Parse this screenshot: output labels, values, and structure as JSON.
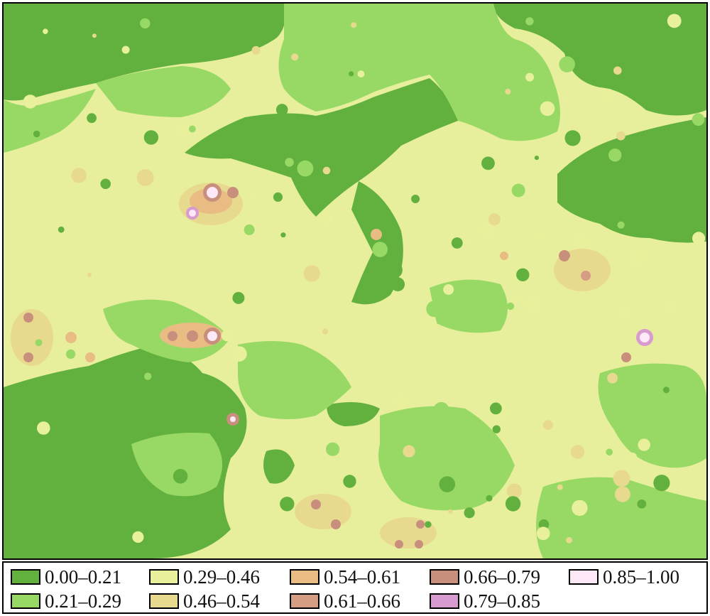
{
  "legend": {
    "items": [
      {
        "label": "0.00–0.21",
        "color": "#62b13f"
      },
      {
        "label": "0.21–0.29",
        "color": "#98d966"
      },
      {
        "label": "0.29–0.46",
        "color": "#e8f09c"
      },
      {
        "label": "0.46–0.54",
        "color": "#e7da8f"
      },
      {
        "label": "0.54–0.61",
        "color": "#e8bc82"
      },
      {
        "label": "0.61–0.66",
        "color": "#d59e84"
      },
      {
        "label": "0.66–0.79",
        "color": "#c98f7d"
      },
      {
        "label": "0.79–0.85",
        "color": "#d79bd0"
      },
      {
        "label": "0.85–1.00",
        "color": "#fce8f6"
      }
    ]
  }
}
